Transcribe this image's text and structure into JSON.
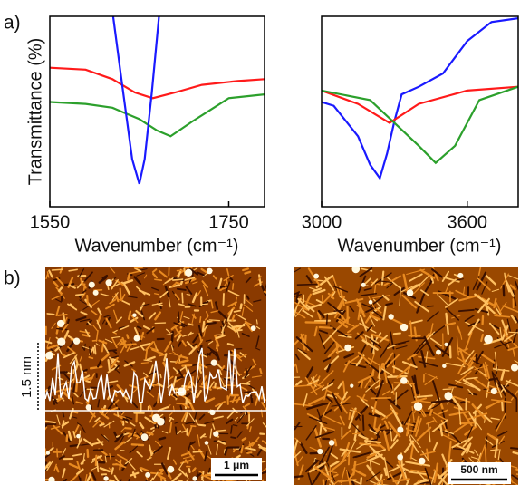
{
  "panel_labels": [
    "a)",
    "b)"
  ],
  "chart_data": [
    {
      "type": "line",
      "y_label": "Transmittance (%)",
      "x_label": "Wavenumber (cm⁻¹)",
      "xlim": [
        1550,
        1790
      ],
      "xticks": [
        1550,
        1750
      ],
      "ylim": [
        0,
        100
      ],
      "series": [
        {
          "name": null,
          "color": "#ff1a1a",
          "x": [
            1550,
            1590,
            1620,
            1645,
            1665,
            1690,
            1720,
            1760,
            1790
          ],
          "values": [
            73,
            72,
            67,
            60,
            57,
            60,
            64,
            66,
            67
          ]
        },
        {
          "name": null,
          "color": "#2ca02c",
          "x": [
            1550,
            1590,
            1620,
            1650,
            1670,
            1685,
            1710,
            1750,
            1790
          ],
          "values": [
            55,
            54,
            52,
            46,
            40,
            37,
            45,
            57,
            59
          ]
        },
        {
          "name": null,
          "color": "#1a1aff",
          "x": [
            1618,
            1632,
            1642,
            1650,
            1656,
            1664,
            1674
          ],
          "values": [
            110,
            60,
            25,
            12,
            25,
            60,
            110
          ]
        }
      ]
    },
    {
      "type": "line",
      "x_label": "Wavenumber (cm⁻¹)",
      "xlim": [
        3000,
        3810
      ],
      "xticks": [
        3000,
        3600
      ],
      "ylim": [
        0,
        100
      ],
      "series": [
        {
          "name": null,
          "color": "#1a1aff",
          "x": [
            3000,
            3050,
            3150,
            3200,
            3240,
            3270,
            3300,
            3330,
            3400,
            3500,
            3600,
            3700,
            3810
          ],
          "values": [
            55,
            53,
            37,
            22,
            15,
            28,
            45,
            59,
            63,
            70,
            87,
            97,
            99
          ]
        },
        {
          "name": null,
          "color": "#ff1a1a",
          "x": [
            3000,
            3150,
            3280,
            3400,
            3600,
            3810
          ],
          "values": [
            61,
            54,
            44,
            54,
            61,
            63
          ]
        },
        {
          "name": null,
          "color": "#2ca02c",
          "x": [
            3000,
            3200,
            3300,
            3400,
            3470,
            3550,
            3650,
            3810
          ],
          "values": [
            61,
            56,
            44,
            32,
            23,
            32,
            56,
            63
          ]
        }
      ]
    }
  ],
  "images": [
    {
      "profile_label": "1.5 nm",
      "scale_bar": "1 μm"
    },
    {
      "scale_bar": "500 nm"
    }
  ]
}
